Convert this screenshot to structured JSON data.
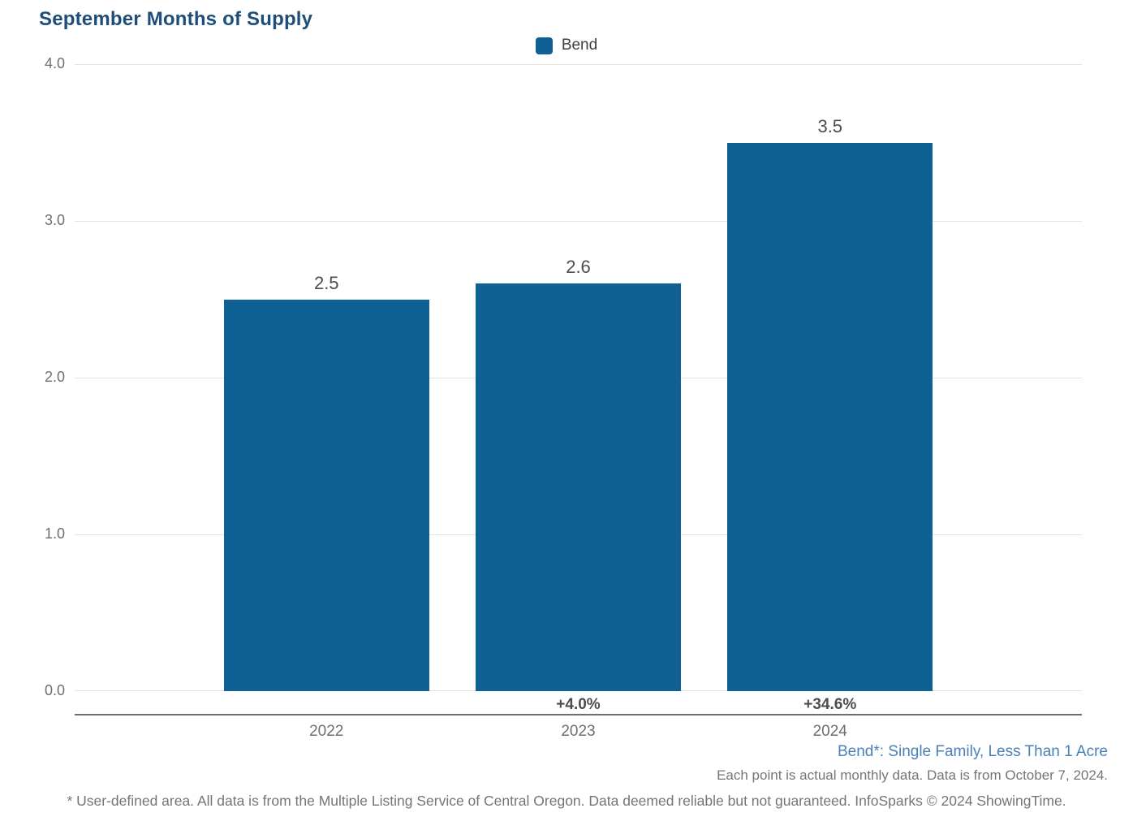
{
  "title": "September Months of Supply",
  "legend": {
    "label": "Bend",
    "swatch_icon": "legend-swatch-square",
    "swatch_color": "#0f6194"
  },
  "chart_data": {
    "type": "bar",
    "title": "September Months of Supply",
    "series_name": "Bend",
    "categories": [
      "2022",
      "2023",
      "2024"
    ],
    "values": [
      2.5,
      2.6,
      3.5
    ],
    "value_labels": [
      "2.5",
      "2.6",
      "3.5"
    ],
    "change_labels": [
      "",
      "+4.0%",
      "+34.6%"
    ],
    "ylim": [
      0,
      4
    ],
    "yticks": [
      "0.0",
      "1.0",
      "2.0",
      "3.0",
      "4.0"
    ],
    "xlabel": "",
    "ylabel": "",
    "grid": true,
    "legend_position": "top-center",
    "bar_color": "#0f6194"
  },
  "footer": {
    "series_note": "Bend*: Single Family, Less Than 1 Acre",
    "data_note": "Each point is actual monthly data. Data is from October 7, 2024.",
    "disclaimer": "* User-defined area. All data is from the Multiple Listing Service of Central Oregon. Data deemed reliable but not guaranteed. InfoSparks © 2024 ShowingTime."
  },
  "colors": {
    "title": "#1d4e79",
    "bar": "#0f6194",
    "series_note": "#4a80b8",
    "muted_text": "#757575",
    "gridline": "#e3e3e3",
    "axis_line": "#6e6e6e"
  }
}
